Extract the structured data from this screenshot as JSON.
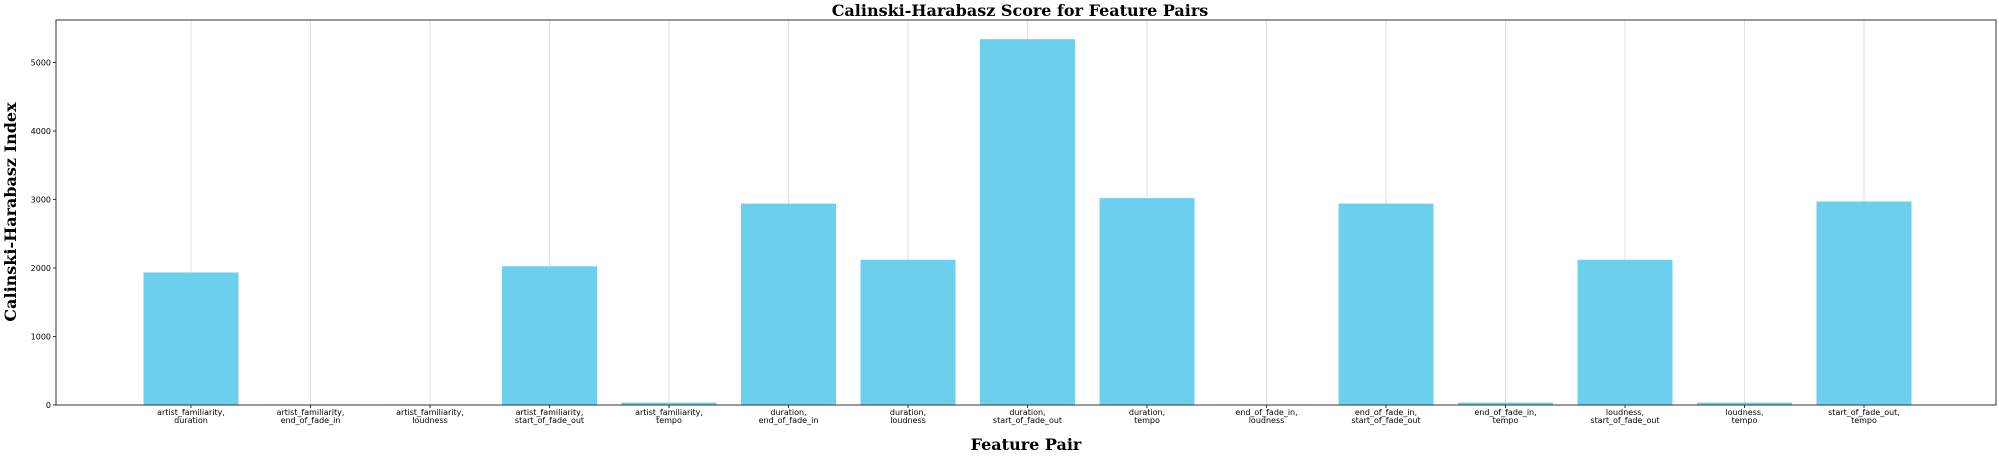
{
  "chart_data": {
    "type": "bar",
    "title": "Calinski-Harabasz Score for Feature Pairs",
    "xlabel": "Feature Pair",
    "ylabel": "Calinski-Harabasz Index",
    "categories": [
      [
        "artist_familiarity,",
        "duration"
      ],
      [
        "artist_familiarity,",
        "end_of_fade_in"
      ],
      [
        "artist_familiarity,",
        "loudness"
      ],
      [
        "artist_familiarity,",
        "start_of_fade_out"
      ],
      [
        "artist_familiarity,",
        "tempo"
      ],
      [
        "duration,",
        "end_of_fade_in"
      ],
      [
        "duration,",
        "loudness"
      ],
      [
        "duration,",
        "start_of_fade_out"
      ],
      [
        "duration,",
        "tempo"
      ],
      [
        "end_of_fade_in,",
        "loudness"
      ],
      [
        "end_of_fade_in,",
        "start_of_fade_out"
      ],
      [
        "end_of_fade_in,",
        "tempo"
      ],
      [
        "loudness,",
        "start_of_fade_out"
      ],
      [
        "loudness,",
        "tempo"
      ],
      [
        "start_of_fade_out,",
        "tempo"
      ]
    ],
    "values": [
      1935,
      8,
      8,
      2025,
      35,
      2940,
      2120,
      5340,
      3020,
      8,
      2940,
      35,
      2120,
      35,
      2970
    ],
    "ylim": [
      0,
      5620
    ],
    "yticks": [
      0,
      1000,
      2000,
      3000,
      4000,
      5000
    ],
    "bar_color": "#6dcfee",
    "grid": "vertical"
  }
}
